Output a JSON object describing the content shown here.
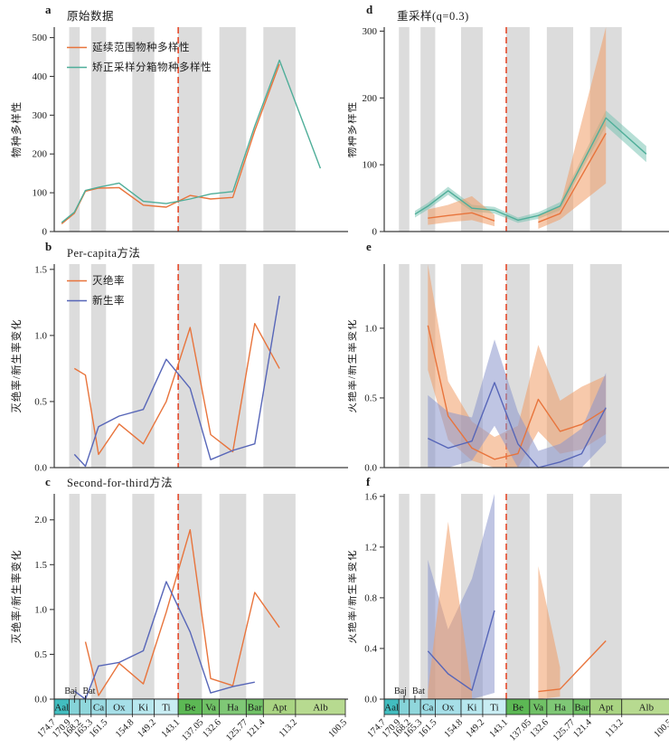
{
  "chart_data": {
    "type": "line",
    "x_axis": {
      "unit": "Ma",
      "t_start": 174.7,
      "t_end": 100.5,
      "boundary_line_t": 143.1
    },
    "timeline": {
      "stages": [
        {
          "code": "Aal",
          "t0": 174.7,
          "t1": 170.9,
          "color": "#42bdbf",
          "shaded": false,
          "label_above": false
        },
        {
          "code": "Baj",
          "t0": 170.9,
          "t1": 168.2,
          "color": "#85d3d8",
          "shaded": true,
          "label_above": true
        },
        {
          "code": "Bat",
          "t0": 168.2,
          "t1": 165.3,
          "color": "#90d7dc",
          "shaded": false,
          "label_above": true
        },
        {
          "code": "Ca",
          "t0": 165.3,
          "t1": 161.5,
          "color": "#9adae2",
          "shaded": true,
          "label_above": false
        },
        {
          "code": "Ox",
          "t0": 161.5,
          "t1": 154.8,
          "color": "#a6dfe8",
          "shaded": false,
          "label_above": false
        },
        {
          "code": "Ki",
          "t0": 154.8,
          "t1": 149.2,
          "color": "#b7e7ee",
          "shaded": true,
          "label_above": false
        },
        {
          "code": "Ti",
          "t0": 149.2,
          "t1": 143.1,
          "color": "#c9edf3",
          "shaded": false,
          "label_above": false
        },
        {
          "code": "Be",
          "t0": 143.1,
          "t1": 137.05,
          "color": "#5cb854",
          "shaded": true,
          "label_above": false
        },
        {
          "code": "Va",
          "t0": 137.05,
          "t1": 132.6,
          "color": "#70c166",
          "shaded": false,
          "label_above": false
        },
        {
          "code": "Ha",
          "t0": 132.6,
          "t1": 125.77,
          "color": "#7fc876",
          "shaded": true,
          "label_above": false
        },
        {
          "code": "Bar",
          "t0": 125.77,
          "t1": 121.4,
          "color": "#70c166",
          "shaded": false,
          "label_above": false
        },
        {
          "code": "Apt",
          "t0": 121.4,
          "t1": 113.2,
          "color": "#a9d482",
          "shaded": true,
          "label_above": false
        },
        {
          "code": "Alb",
          "t0": 113.2,
          "t1": 100.5,
          "color": "#b7da90",
          "shaded": false,
          "label_above": false
        }
      ],
      "age_ticks": [
        "174.7",
        "170.9",
        "168.2",
        "165.3",
        "161.5",
        "154.8",
        "149.2",
        "143.1",
        "137.05",
        "132.6",
        "125.77",
        "121.4",
        "113.2",
        "100.5"
      ]
    },
    "colors": {
      "orange_line": "#e8743c",
      "teal_line": "#4fae99",
      "blue_line": "#5766b8",
      "red_dashed": "#e54a2b",
      "gray_band": "#dcdcdc",
      "orange_fill": "#f09c66",
      "teal_fill": "#6fbfae",
      "blue_fill": "#8b96cc",
      "axis": "#3a3a3a"
    },
    "panels": [
      {
        "letter": "a",
        "col": "left",
        "row": 1,
        "stage_bar": false,
        "title": "原始数据",
        "ylabel": "物种多样性",
        "ymax": 527,
        "yticks": [
          "0",
          "100",
          "200",
          "300",
          "400",
          "500"
        ],
        "legend": [
          {
            "label": "延续范围物种多样性",
            "color": "#e8743c"
          },
          {
            "label": "矫正采样分箱物种多样性",
            "color": "#4fae99"
          }
        ],
        "bands": [],
        "series": [
          {
            "name": "延续范围物种多样性",
            "color": "#e8743c",
            "stages": [
              "Aal",
              "Baj",
              "Bat",
              "Ca",
              "Ox",
              "Ki",
              "Ti",
              "Be",
              "Va",
              "Ha",
              "Bar",
              "Apt"
            ],
            "values": [
              20,
              47,
              104,
              112,
              113,
              68,
              63,
              93,
              84,
              88,
              260,
              432
            ]
          },
          {
            "name": "矫正采样分箱物种多样性",
            "color": "#4fae99",
            "stages": [
              "Aal",
              "Baj",
              "Bat",
              "Ca",
              "Ox",
              "Ki",
              "Ti",
              "Be",
              "Va",
              "Ha",
              "Bar",
              "Apt",
              "Alb"
            ],
            "values": [
              23,
              50,
              106,
              114,
              125,
              78,
              72,
              84,
              97,
              103,
              272,
              442,
              163
            ]
          }
        ]
      },
      {
        "letter": "b",
        "col": "left",
        "row": 2,
        "stage_bar": false,
        "title": "Per-capita方法",
        "ylabel": "灭绝率/新生率变化",
        "ymax": 1.54,
        "yticks": [
          "0.0",
          "0.5",
          "1.0",
          "1.5"
        ],
        "legend": [
          {
            "label": "灭绝率",
            "color": "#e8743c"
          },
          {
            "label": "新生率",
            "color": "#5766b8"
          }
        ],
        "bands": [],
        "series": [
          {
            "name": "灭绝率",
            "color": "#e8743c",
            "stages": [
              "Baj",
              "Bat",
              "Ca",
              "Ox",
              "Ki",
              "Ti",
              "Be",
              "Va",
              "Ha",
              "Bar",
              "Apt"
            ],
            "values": [
              0.75,
              0.7,
              0.1,
              0.33,
              0.18,
              0.5,
              1.06,
              0.25,
              0.12,
              1.09,
              0.75
            ]
          },
          {
            "name": "新生率",
            "color": "#5766b8",
            "stages": [
              "Baj",
              "Bat",
              "Ca",
              "Ox",
              "Ki",
              "Ti",
              "Be",
              "Va",
              "Ha",
              "Bar",
              "Apt"
            ],
            "values": [
              0.1,
              0.01,
              0.31,
              0.39,
              0.44,
              0.82,
              0.6,
              0.06,
              0.13,
              0.18,
              1.3
            ]
          }
        ]
      },
      {
        "letter": "c",
        "col": "left",
        "row": 3,
        "stage_bar": true,
        "title": "Second-for-third方法",
        "ylabel": "灭绝率/新生率变化",
        "ymax": 2.29,
        "yticks": [
          "0.0",
          "0.5",
          "1.0",
          "1.5",
          "2.0"
        ],
        "legend": [],
        "bands": [],
        "series": [
          {
            "name": "灭绝率",
            "color": "#e8743c",
            "stages": [
              "Bat",
              "Ca",
              "Ox",
              "Ki",
              "Ti",
              "Be",
              "Va",
              "Ha",
              "Bar",
              "Apt"
            ],
            "values": [
              0.64,
              0.04,
              0.4,
              0.17,
              0.97,
              1.89,
              0.23,
              0.15,
              1.19,
              0.8
            ]
          },
          {
            "name": "新生率",
            "color": "#5766b8",
            "stages": [
              "Baj",
              "Bat",
              "Ca",
              "Ox",
              "Ki",
              "Ti",
              "Be",
              "Va",
              "Ha",
              "Bar"
            ],
            "values": [
              0.09,
              0.0,
              0.37,
              0.41,
              0.54,
              1.31,
              0.75,
              0.07,
              0.14,
              0.19
            ]
          }
        ]
      },
      {
        "letter": "d",
        "col": "right",
        "row": 1,
        "stage_bar": false,
        "title": "重采样(q=0.3)",
        "ylabel": "物种多样性",
        "ymax": 306,
        "yticks": [
          "0",
          "100",
          "200",
          "300"
        ],
        "legend": [],
        "bands": [
          {
            "color": "#6fbfae",
            "opacity": 0.5,
            "stages": [
              "Bat",
              "Ca",
              "Ox",
              "Ki",
              "Ti",
              "Be",
              "Va",
              "Ha",
              "Apt",
              "Alb"
            ],
            "lo": [
              21,
              33,
              55,
              30,
              27,
              13,
              19,
              32,
              158,
              104
            ],
            "hi": [
              31,
              43,
              67,
              40,
              37,
              21,
              29,
              44,
              181,
              128
            ]
          },
          {
            "color": "#f09c66",
            "opacity": 0.55,
            "stages": [
              "Ca",
              "Ox",
              "Ki",
              "Ti"
            ],
            "lo": [
              10,
              14,
              17,
              8
            ],
            "hi": [
              33,
              40,
              53,
              25
            ]
          },
          {
            "color": "#f09c66",
            "opacity": 0.55,
            "stages": [
              "Va",
              "Ha",
              "Apt"
            ],
            "lo": [
              4,
              18,
              72
            ],
            "hi": [
              23,
              38,
              310
            ]
          }
        ],
        "series": [
          {
            "name": "矫正采样分箱物种多样性",
            "color": "#4fae99",
            "stages": [
              "Bat",
              "Ca",
              "Ox",
              "Ki",
              "Ti",
              "Be",
              "Va",
              "Ha",
              "Apt",
              "Alb"
            ],
            "values": [
              26,
              38,
              61,
              35,
              32,
              17,
              24,
              38,
              170,
              116
            ]
          },
          {
            "name": "延续范围物种多样性",
            "color": "#e8743c",
            "stages": [
              "Ca",
              "Ox",
              "Ki",
              "Ti"
            ],
            "values": [
              20,
              24,
              28,
              16
            ]
          },
          {
            "name": "延续范围物种多样性",
            "color": "#e8743c",
            "stages": [
              "Va",
              "Ha",
              "Apt"
            ],
            "values": [
              14,
              27,
              147
            ]
          }
        ]
      },
      {
        "letter": "e",
        "col": "right",
        "row": 2,
        "stage_bar": false,
        "title": "",
        "ylabel": "灭绝率/新生率变化",
        "ymax": 1.46,
        "yticks": [
          "0.0",
          "0.5",
          "1.0"
        ],
        "legend": [],
        "bands": [
          {
            "color": "#f09c66",
            "opacity": 0.55,
            "stages": [
              "Ca",
              "Ox",
              "Ki",
              "Ti",
              "Be",
              "Va",
              "Ha",
              "Bar",
              "Apt"
            ],
            "lo": [
              0.7,
              0.2,
              0.05,
              0.0,
              0.0,
              0.26,
              0.1,
              0.13,
              0.24
            ],
            "hi": [
              1.5,
              0.62,
              0.33,
              0.22,
              0.3,
              0.88,
              0.48,
              0.58,
              0.66
            ]
          },
          {
            "color": "#8b96cc",
            "opacity": 0.55,
            "stages": [
              "Ca",
              "Ox",
              "Ki",
              "Ti",
              "Be",
              "Va",
              "Ha",
              "Bar",
              "Apt"
            ],
            "lo": [
              0.0,
              0.0,
              0.05,
              0.3,
              0.0,
              0.0,
              0.0,
              0.0,
              0.18
            ],
            "hi": [
              0.52,
              0.4,
              0.36,
              0.92,
              0.4,
              0.12,
              0.17,
              0.28,
              0.68
            ]
          }
        ],
        "series": [
          {
            "name": "灭绝率",
            "color": "#e8743c",
            "stages": [
              "Ca",
              "Ox",
              "Ki",
              "Ti",
              "Be",
              "Va",
              "Ha",
              "Bar",
              "Apt"
            ],
            "values": [
              1.02,
              0.37,
              0.14,
              0.06,
              0.1,
              0.49,
              0.26,
              0.31,
              0.42
            ]
          },
          {
            "name": "新生率",
            "color": "#5766b8",
            "stages": [
              "Ca",
              "Ox",
              "Ki",
              "Ti",
              "Be",
              "Va",
              "Ha",
              "Bar",
              "Apt"
            ],
            "values": [
              0.21,
              0.14,
              0.19,
              0.61,
              0.17,
              0.0,
              0.04,
              0.1,
              0.43
            ]
          }
        ]
      },
      {
        "letter": "f",
        "col": "right",
        "row": 3,
        "stage_bar": true,
        "title": "",
        "ylabel": "灭绝率/新生率变化",
        "ymax": 1.62,
        "yticks": [
          "0.0",
          "0.4",
          "0.8",
          "1.2",
          "1.6"
        ],
        "legend": [],
        "bands": [
          {
            "color": "#8b96cc",
            "opacity": 0.55,
            "stages": [
              "Ca",
              "Ox",
              "Ki",
              "Ti"
            ],
            "lo": [
              0.0,
              0.0,
              0.0,
              0.05
            ],
            "hi": [
              1.1,
              0.55,
              0.95,
              1.62
            ]
          },
          {
            "color": "#f09c66",
            "opacity": 0.55,
            "stages": [
              "Ca",
              "Ox",
              "Ki"
            ],
            "lo": [
              0.0,
              0.0,
              0.0
            ],
            "hi": [
              0.06,
              1.4,
              0.06
            ]
          },
          {
            "color": "#f09c66",
            "opacity": 0.55,
            "stages": [
              "Va",
              "Ha"
            ],
            "lo": [
              0.0,
              0.02
            ],
            "hi": [
              1.05,
              0.25
            ]
          }
        ],
        "series": [
          {
            "name": "新生率",
            "color": "#5766b8",
            "stages": [
              "Ca",
              "Ox",
              "Ki",
              "Ti"
            ],
            "values": [
              0.38,
              0.2,
              0.07,
              0.7
            ]
          },
          {
            "name": "灭绝率",
            "color": "#e8743c",
            "stages": [
              "Va",
              "Ha",
              "Apt"
            ],
            "values": [
              0.06,
              0.08,
              0.46
            ]
          }
        ]
      }
    ]
  }
}
